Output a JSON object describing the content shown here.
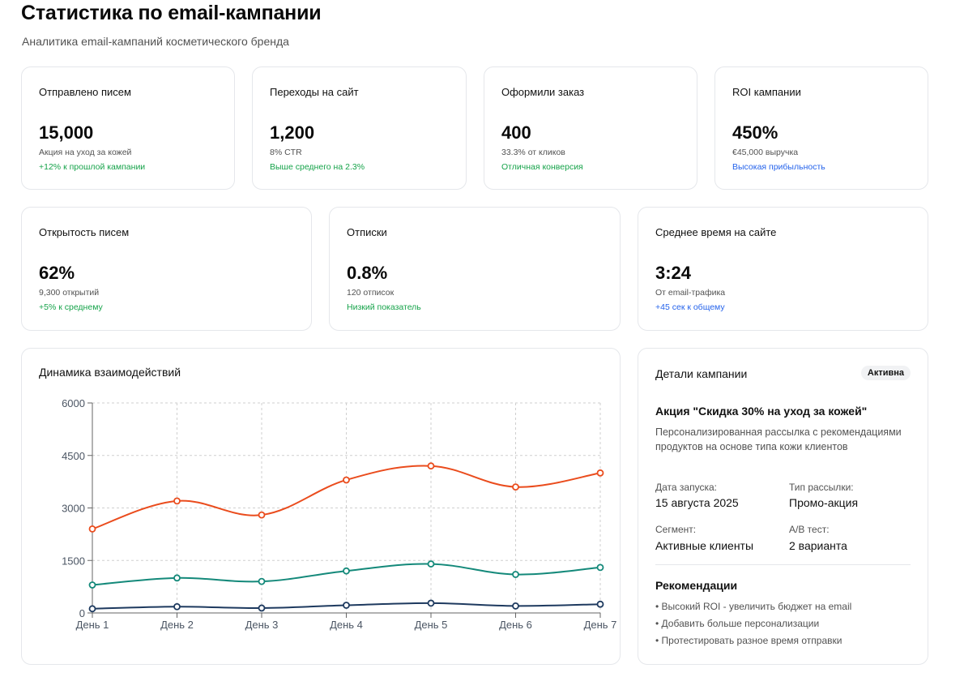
{
  "header": {
    "title": "Статистика по email-кампании",
    "subtitle": "Аналитика email-кампаний косметического бренда"
  },
  "metrics_row1": [
    {
      "label": "Отправлено писем",
      "value": "15,000",
      "sub": "Акция на уход за кожей",
      "note": "+12% к прошлой кампании",
      "note_color": "#16a34a"
    },
    {
      "label": "Переходы на сайт",
      "value": "1,200",
      "sub": "8% CTR",
      "note": "Выше среднего на 2.3%",
      "note_color": "#16a34a"
    },
    {
      "label": "Оформили заказ",
      "value": "400",
      "sub": "33.3% от кликов",
      "note": "Отличная конверсия",
      "note_color": "#16a34a"
    },
    {
      "label": "ROI кампании",
      "value": "450%",
      "sub": "€45,000 выручка",
      "note": "Высокая прибыльность",
      "note_color": "#2563eb"
    }
  ],
  "metrics_row2": [
    {
      "label": "Открытость писем",
      "value": "62%",
      "sub": "9,300 открытий",
      "note": "+5% к среднему",
      "note_color": "#16a34a"
    },
    {
      "label": "Отписки",
      "value": "0.8%",
      "sub": "120 отписок",
      "note": "Низкий показатель",
      "note_color": "#16a34a"
    },
    {
      "label": "Среднее время на сайте",
      "value": "3:24",
      "sub": "От email-трафика",
      "note": "+45 сек к общему",
      "note_color": "#2563eb"
    }
  ],
  "chart_data": {
    "type": "line",
    "title": "Динамика взаимодействий",
    "categories": [
      "День 1",
      "День 2",
      "День 3",
      "День 4",
      "День 5",
      "День 6",
      "День 7"
    ],
    "series": [
      {
        "name": "series-orange",
        "color": "#ea4c1d",
        "values": [
          2400,
          3200,
          2800,
          3800,
          4200,
          3600,
          4000
        ]
      },
      {
        "name": "series-teal",
        "color": "#14897a",
        "values": [
          800,
          1000,
          900,
          1200,
          1400,
          1100,
          1300
        ]
      },
      {
        "name": "series-navy",
        "color": "#1e3a5f",
        "values": [
          120,
          180,
          140,
          220,
          280,
          200,
          250
        ]
      }
    ],
    "yticks": [
      0,
      1500,
      3000,
      4500,
      6000
    ],
    "ylim": [
      0,
      6000
    ],
    "grid": true,
    "xlabel": "",
    "ylabel": ""
  },
  "details": {
    "title": "Детали кампании",
    "badge": "Активна",
    "promo_name": "Акция \"Скидка 30% на уход за кожей\"",
    "description": "Персонализированная рассылка с рекомендациями продуктов на основе типа кожи клиентов",
    "fields": {
      "launch_label": "Дата запуска:",
      "launch_value": "15 августа 2025",
      "type_label": "Тип рассылки:",
      "type_value": "Промо-акция",
      "segment_label": "Сегмент:",
      "segment_value": "Активные клиенты",
      "ab_label": "A/B тест:",
      "ab_value": "2 варианта"
    },
    "recommendations_title": "Рекомендации",
    "recommendations": [
      "• Высокий ROI - увеличить бюджет на email",
      "• Добавить больше персонализации",
      "• Протестировать разное время отправки"
    ]
  }
}
